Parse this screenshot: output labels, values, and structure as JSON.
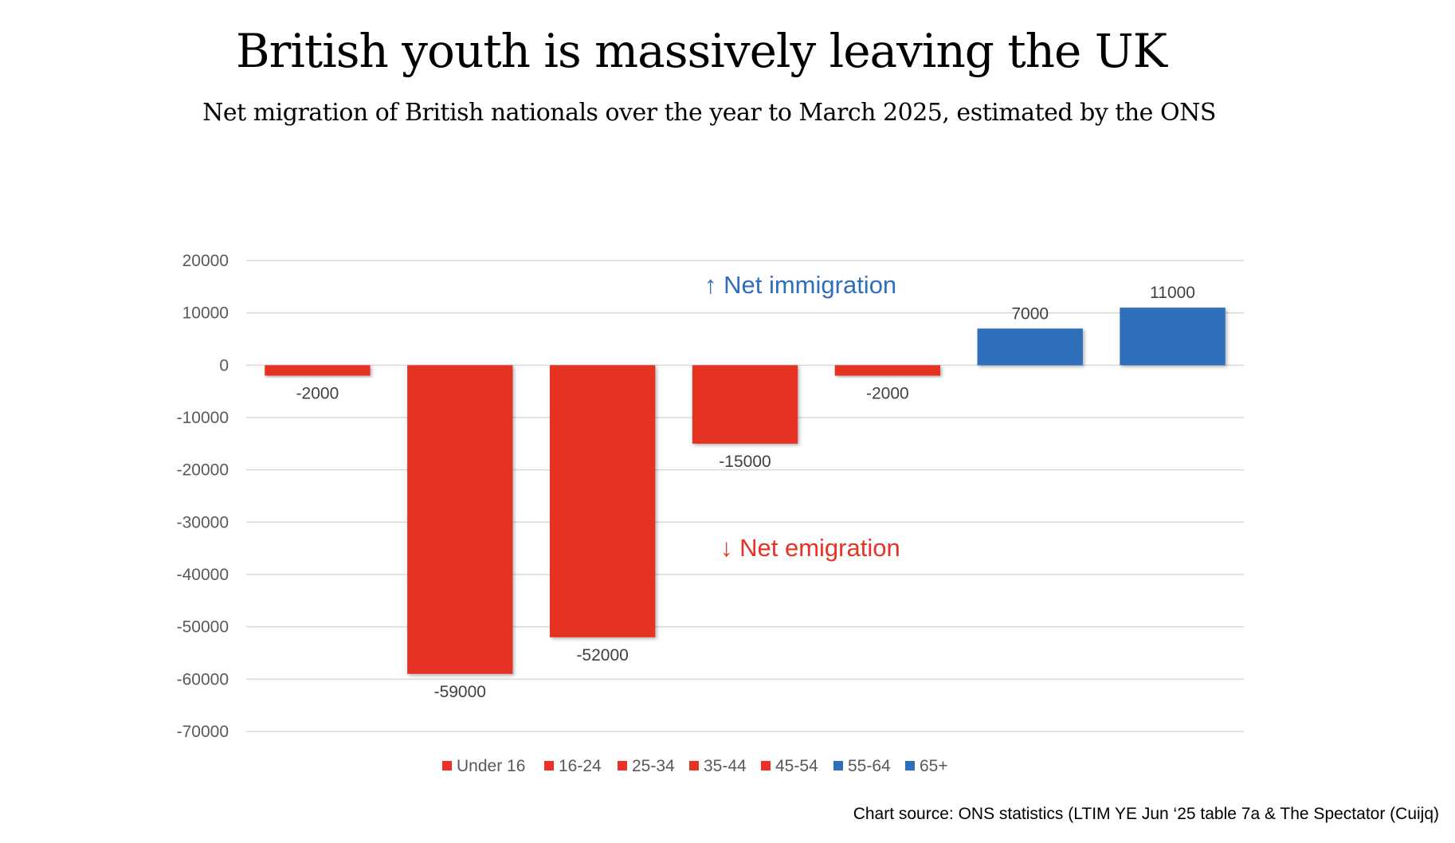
{
  "chart_data": {
    "type": "bar",
    "title": "British youth is massively leaving the UK",
    "subtitle": "Net migration of British nationals over the year to March 2025, estimated by the ONS",
    "categories": [
      "Under 16",
      "16-24",
      "25-34",
      "35-44",
      "45-54",
      "55-64",
      "65+"
    ],
    "values": [
      -2000,
      -59000,
      -52000,
      -15000,
      -2000,
      7000,
      11000
    ],
    "data_labels": [
      "-2000",
      "-59000",
      "-52000",
      "-15000",
      "-2000",
      "7000",
      "11000"
    ],
    "colors": [
      "#E63323",
      "#E63323",
      "#E63323",
      "#E63323",
      "#E63323",
      "#2F6EBA",
      "#2F6EBA"
    ],
    "ylim": [
      -70000,
      20000
    ],
    "yticks": [
      20000,
      10000,
      0,
      -10000,
      -20000,
      -30000,
      -40000,
      -50000,
      -60000,
      -70000
    ],
    "ytick_labels": [
      "20000",
      "10000",
      "0",
      "-10000",
      "-20000",
      "-30000",
      "-40000",
      "-50000",
      "-60000",
      "-70000"
    ],
    "xlabel": "",
    "ylabel": "",
    "grid": true,
    "legend": "bottom",
    "annotations": [
      {
        "text": "↑ Net immigration",
        "color": "#2F6EBA",
        "value": 15000
      },
      {
        "text": "↓ Net emigration",
        "color": "#E63323",
        "value": -35000
      }
    ],
    "source": "Chart source: ONS statistics (LTIM YE Jun ‘25 table 7a & The Spectator (Cuijq)"
  }
}
